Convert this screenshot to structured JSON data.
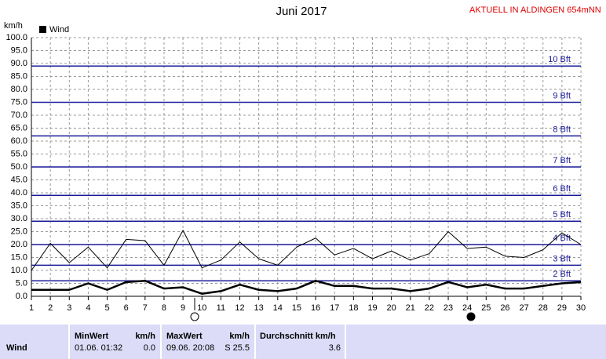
{
  "chart_data": {
    "type": "line",
    "title": "Juni 2017",
    "station": "AKTUELL IN ALDINGEN 654mNN",
    "y_label": "km/h",
    "x": [
      1,
      2,
      3,
      4,
      5,
      6,
      7,
      8,
      9,
      10,
      11,
      12,
      13,
      14,
      15,
      16,
      17,
      18,
      19,
      20,
      21,
      22,
      23,
      24,
      25,
      26,
      27,
      28,
      29,
      30
    ],
    "xlim": [
      1,
      30
    ],
    "xticks": [
      1,
      2,
      3,
      4,
      5,
      6,
      7,
      8,
      9,
      10,
      11,
      12,
      13,
      14,
      15,
      16,
      17,
      18,
      19,
      20,
      21,
      22,
      23,
      24,
      25,
      26,
      27,
      28,
      29,
      30
    ],
    "ylim": [
      0,
      100
    ],
    "yticks": [
      {
        "value": 0,
        "label": "0.0"
      },
      {
        "value": 5,
        "label": "5.0"
      },
      {
        "value": 10,
        "label": "10.0"
      },
      {
        "value": 15,
        "label": "15.0"
      },
      {
        "value": 20,
        "label": "20.0"
      },
      {
        "value": 25,
        "label": "25.0"
      },
      {
        "value": 30,
        "label": "30.0"
      },
      {
        "value": 35,
        "label": "35.0"
      },
      {
        "value": 40,
        "label": "40.0"
      },
      {
        "value": 45,
        "label": "45.0"
      },
      {
        "value": 50,
        "label": "50.0"
      },
      {
        "value": 55,
        "label": "55.0"
      },
      {
        "value": 60,
        "label": "60.0"
      },
      {
        "value": 65,
        "label": "65.0"
      },
      {
        "value": 70,
        "label": "70.0"
      },
      {
        "value": 75,
        "label": "75.0"
      },
      {
        "value": 80,
        "label": "80.0"
      },
      {
        "value": 85,
        "label": "85.0"
      },
      {
        "value": 90,
        "label": "90.0"
      },
      {
        "value": 95,
        "label": "95.0"
      },
      {
        "value": 100,
        "label": "100.0"
      }
    ],
    "grid": true,
    "reference_color": "#1a1a99",
    "reference_lines": [
      {
        "value": 6,
        "label": "2 Bft"
      },
      {
        "value": 12,
        "label": "3 Bft"
      },
      {
        "value": 20,
        "label": "4 Bft"
      },
      {
        "value": 29,
        "label": "5 Bft"
      },
      {
        "value": 39,
        "label": "6 Bft"
      },
      {
        "value": 50,
        "label": "7 Bft"
      },
      {
        "value": 62,
        "label": "8 Bft"
      },
      {
        "value": 75,
        "label": "9 Bft"
      },
      {
        "value": 89,
        "label": "10 Bft"
      }
    ],
    "series": [
      {
        "name": "Wind",
        "color": "#000000",
        "width": 2.5,
        "values": [
          2.5,
          2.5,
          2.5,
          5,
          2.5,
          5.5,
          6,
          3,
          3.5,
          1,
          2,
          4.5,
          2.5,
          2,
          3,
          6,
          4,
          4,
          3,
          3,
          2,
          3,
          5.5,
          3.5,
          4.5,
          3,
          3,
          4,
          5,
          5.5
        ]
      },
      {
        "color": "#000000",
        "width": 1,
        "values": [
          10,
          20.5,
          13,
          19,
          11,
          22,
          21.5,
          12,
          25.5,
          11,
          14,
          21,
          14.5,
          12,
          19,
          22.5,
          16,
          18.5,
          14.5,
          17.5,
          14,
          16.5,
          25,
          18.5,
          19,
          15.5,
          15,
          18,
          24.5,
          20
        ]
      }
    ]
  },
  "stats": {
    "label": "Wind",
    "min": {
      "header": "MinWert",
      "unit": "km/h",
      "time": "01.06.  01:32",
      "value": "0.0"
    },
    "max": {
      "header": "MaxWert",
      "unit": "km/h",
      "time": "09.06.  20:08",
      "value": "S 25.5"
    },
    "avg": {
      "header": "Durchschnitt km/h",
      "value": "3.6"
    }
  }
}
